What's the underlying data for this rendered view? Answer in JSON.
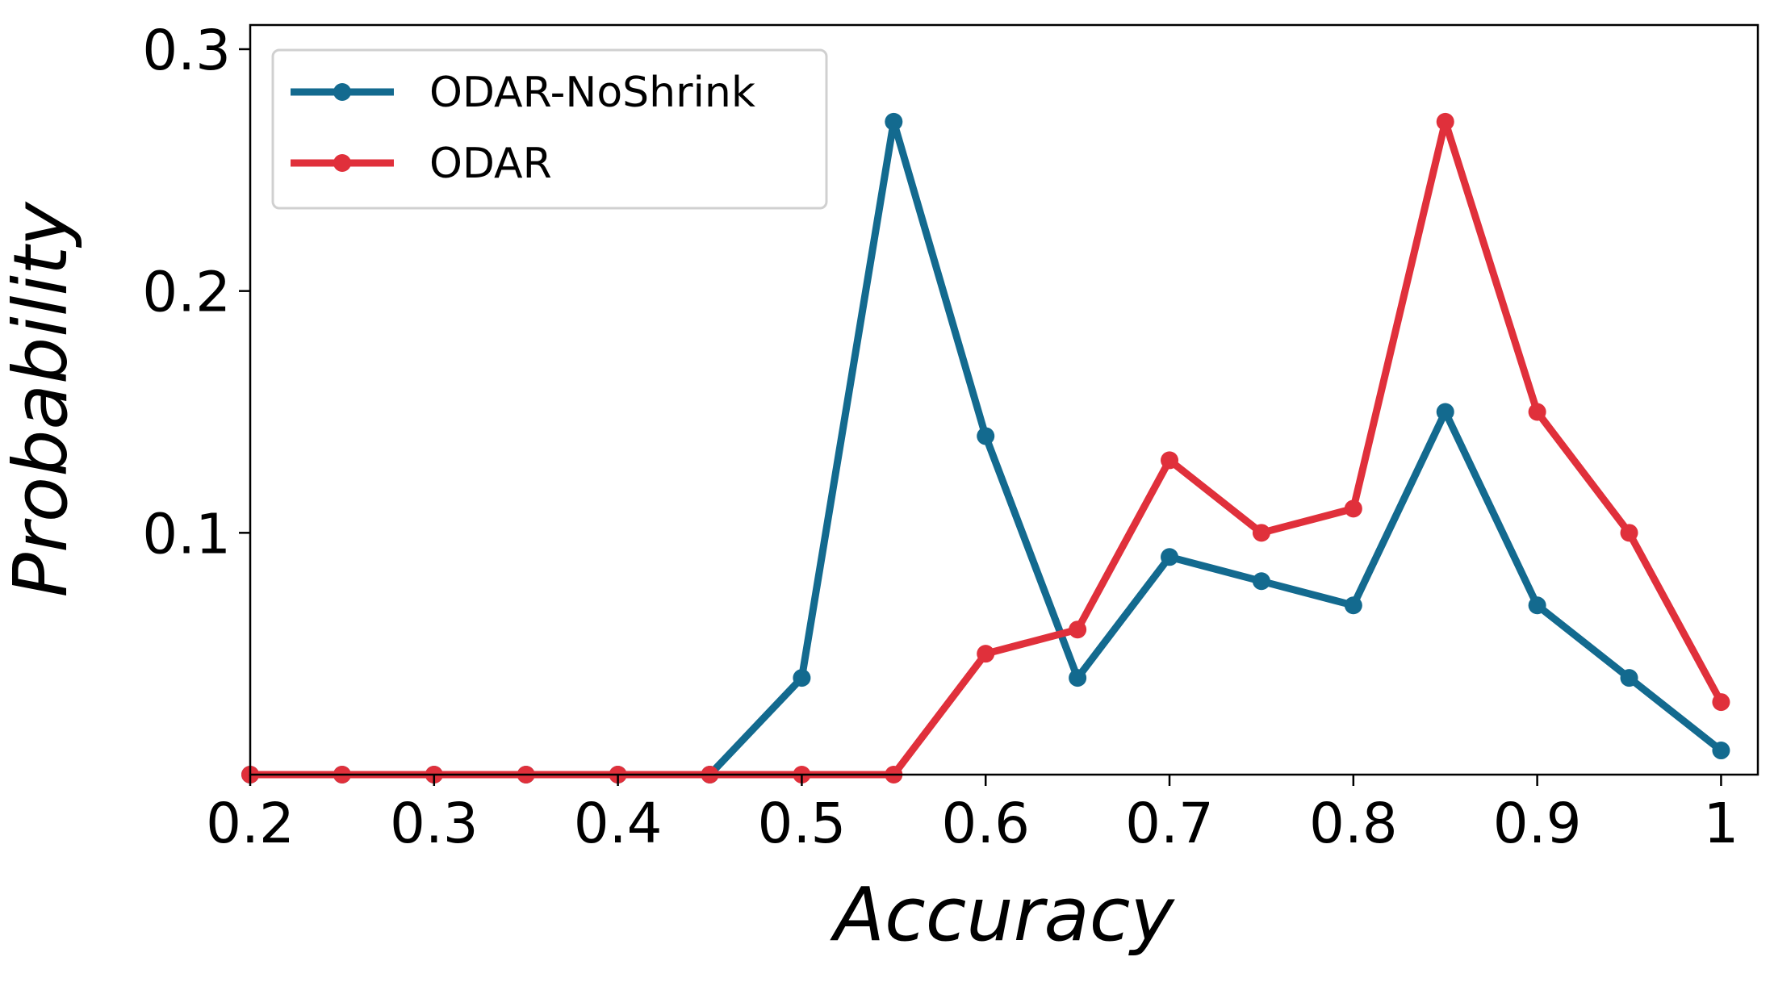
{
  "chart_data": {
    "type": "line",
    "title": "",
    "xlabel": "Accuracy",
    "ylabel": "Probability",
    "xlim": [
      0.2,
      1.02
    ],
    "ylim": [
      0,
      0.31
    ],
    "xticks": [
      0.2,
      0.3,
      0.4,
      0.5,
      0.6,
      0.7,
      0.8,
      0.9,
      1.0
    ],
    "xtick_labels": [
      "0.2",
      "0.3",
      "0.4",
      "0.5",
      "0.6",
      "0.7",
      "0.8",
      "0.9",
      "1"
    ],
    "yticks": [
      0.1,
      0.2,
      0.3
    ],
    "ytick_labels": [
      "0.1",
      "0.2",
      "0.3"
    ],
    "grid": false,
    "legend_position": "top-left",
    "x": [
      0.2,
      0.25,
      0.3,
      0.35,
      0.4,
      0.45,
      0.5,
      0.55,
      0.6,
      0.65,
      0.7,
      0.75,
      0.8,
      0.85,
      0.9,
      0.95,
      1.0
    ],
    "series": [
      {
        "name": "ODAR-NoShrink",
        "color": "#136a8f",
        "values": [
          0,
          0,
          0,
          0,
          0,
          0,
          0.04,
          0.27,
          0.14,
          0.04,
          0.09,
          0.08,
          0.07,
          0.15,
          0.07,
          0.04,
          0.01
        ]
      },
      {
        "name": "ODAR",
        "color": "#e0303b",
        "values": [
          0,
          0,
          0,
          0,
          0,
          0,
          0,
          0,
          0.05,
          0.06,
          0.13,
          0.1,
          0.11,
          0.27,
          0.15,
          0.1,
          0.03
        ]
      }
    ]
  }
}
